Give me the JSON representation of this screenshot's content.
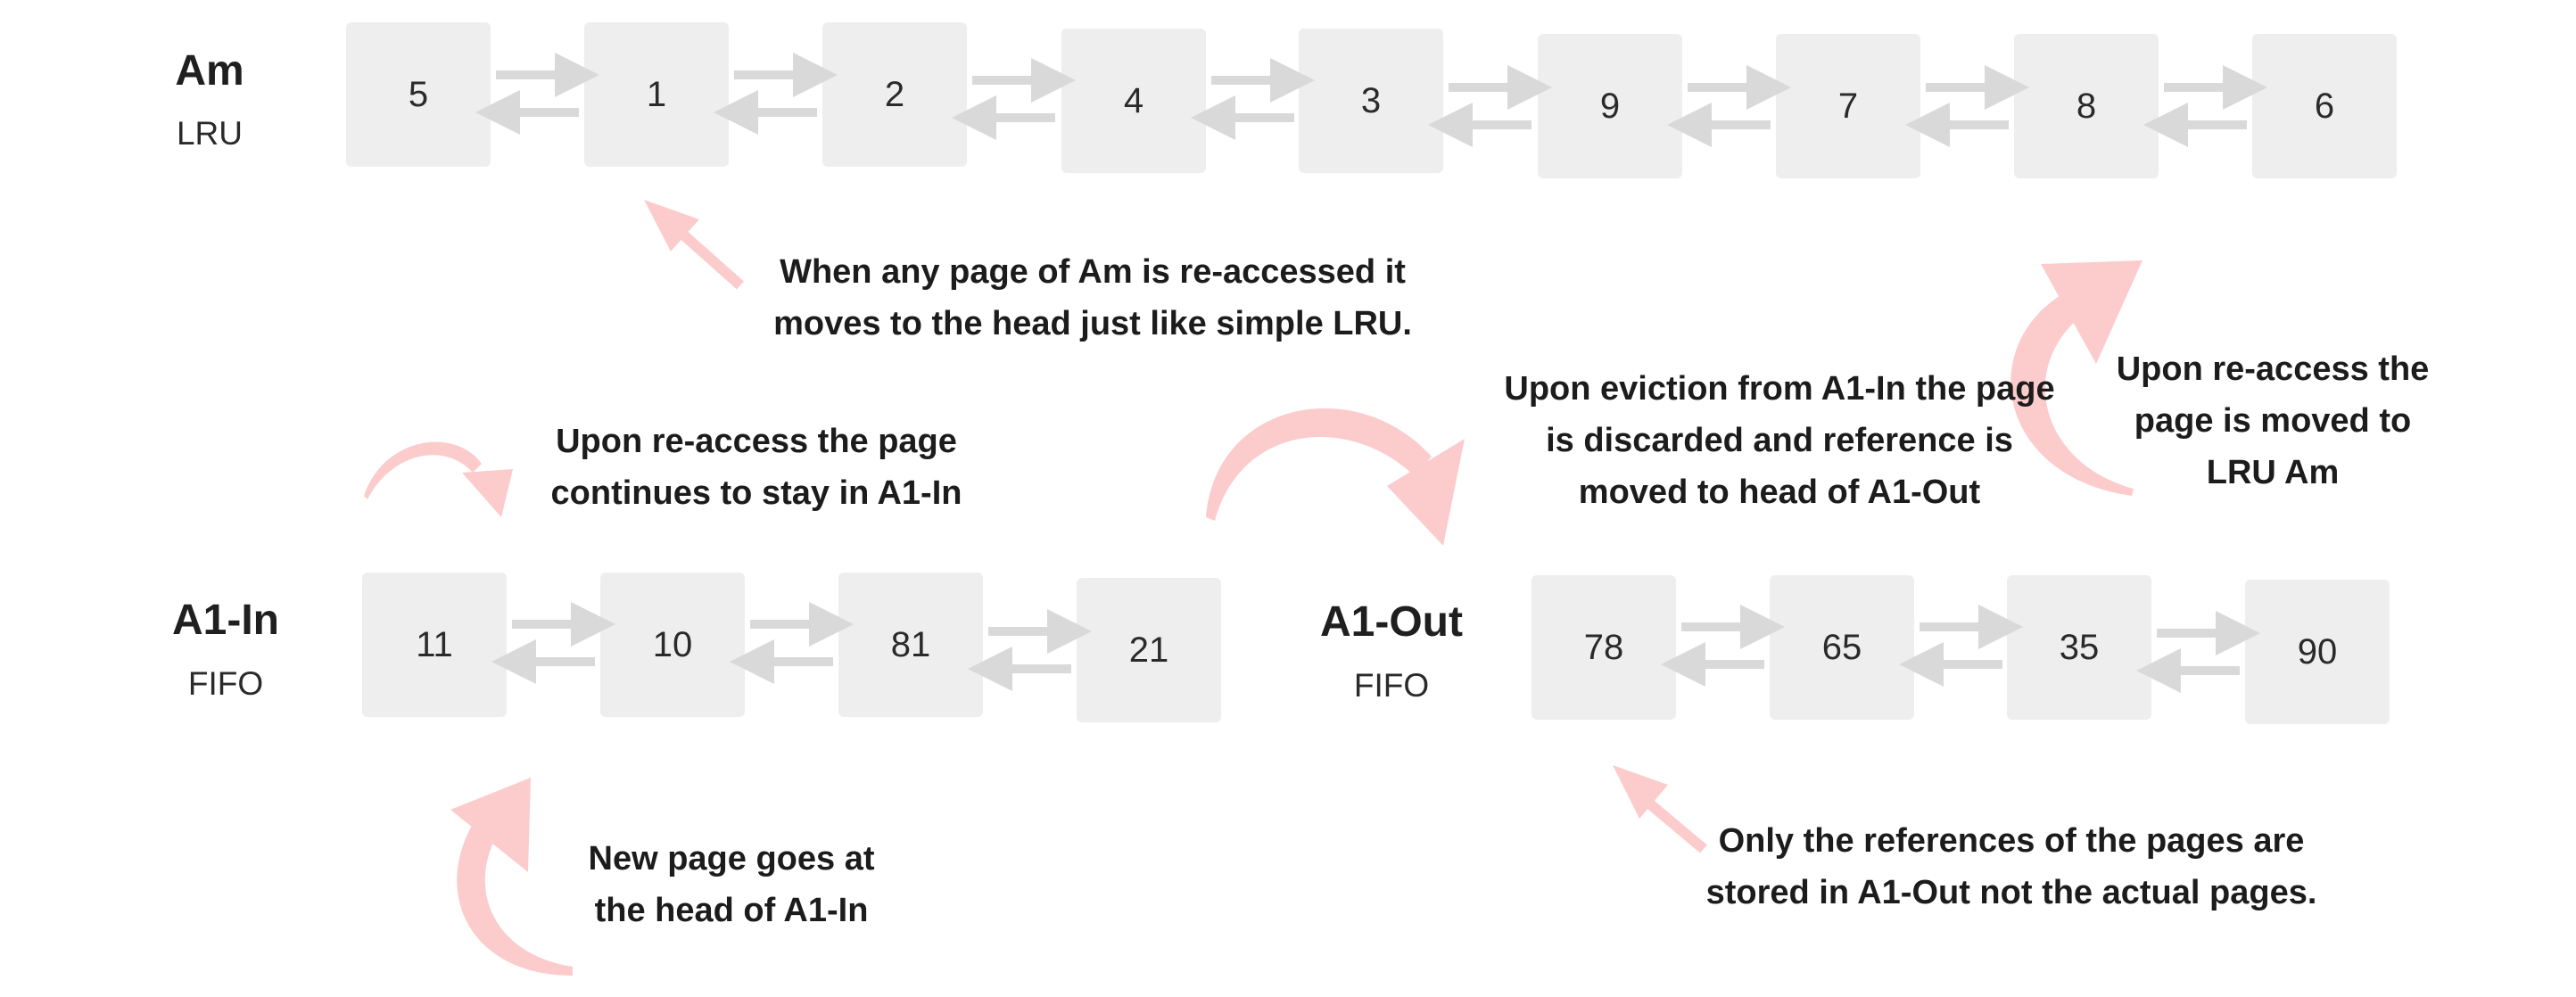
{
  "queues": {
    "am": {
      "name": "Am",
      "policy": "LRU",
      "pages": [
        "5",
        "1",
        "2",
        "4",
        "3",
        "9",
        "7",
        "8",
        "6"
      ]
    },
    "a1_in": {
      "name": "A1-In",
      "policy": "FIFO",
      "pages": [
        "11",
        "10",
        "81",
        "21"
      ]
    },
    "a1_out": {
      "name": "A1-Out",
      "policy": "FIFO",
      "pages": [
        "78",
        "65",
        "35",
        "90"
      ]
    }
  },
  "annotations": {
    "am_reaccess": [
      "When any page of Am is re-accessed it",
      "moves to the head just like simple LRU."
    ],
    "a1in_reaccess": [
      "Upon re-access the page",
      "continues to stay in A1-In"
    ],
    "a1in_eviction": [
      "Upon eviction from A1-In the page",
      "is discarded and reference is",
      "moved to head of A1-Out"
    ],
    "a1out_reaccess": [
      "Upon re-access the",
      "page is moved to",
      "LRU Am"
    ],
    "new_page": [
      "New page goes at",
      "the head of A1-In"
    ],
    "a1out_refs": [
      "Only the references of the pages are",
      "stored in A1-Out not the actual pages."
    ]
  },
  "colors": {
    "node_fill": "#eeeeee",
    "link_arrow": "#d9d9d9",
    "flow_arrow": "#fccccc",
    "text": "#1f1f1f"
  }
}
